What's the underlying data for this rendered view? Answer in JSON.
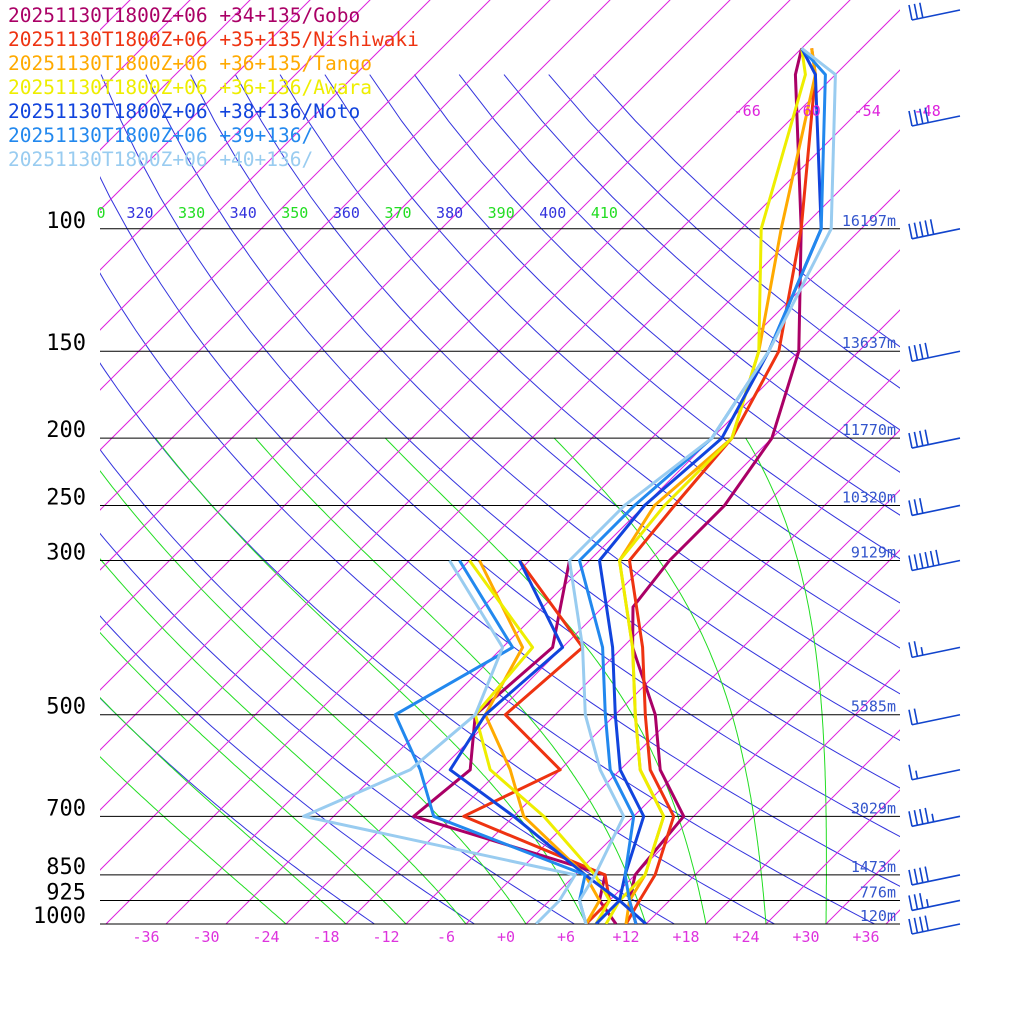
{
  "chart_data": {
    "type": "line",
    "subtype": "skew-T log-p sounding",
    "title": "",
    "xlabel": "",
    "ylabel": "",
    "x_unit": "°C",
    "y_scale": "log-pressure (hPa)",
    "xlim": [
      -40,
      40
    ],
    "ylim": [
      1000,
      100
    ],
    "x_ticks": [
      "-36",
      "-30",
      "-24",
      "-18",
      "-12",
      "-6",
      "+0",
      "+6",
      "+12",
      "+18",
      "+24",
      "+30",
      "+36"
    ],
    "pressure_levels": [
      {
        "p": 100,
        "label": "100",
        "height": "16197m"
      },
      {
        "p": 150,
        "label": "150",
        "height": "13637m"
      },
      {
        "p": 200,
        "label": "200",
        "height": "11770m"
      },
      {
        "p": 250,
        "label": "250",
        "height": "10320m"
      },
      {
        "p": 300,
        "label": "300",
        "height": "9129m"
      },
      {
        "p": 500,
        "label": "500",
        "height": "5585m"
      },
      {
        "p": 700,
        "label": "700",
        "height": "3029m"
      },
      {
        "p": 850,
        "label": "850",
        "height": "1473m"
      },
      {
        "p": 925,
        "label": "925",
        "height": "776m"
      },
      {
        "p": 1000,
        "label": "1000",
        "height": "120m"
      }
    ],
    "isotherm_labels": [
      "-66",
      "-60",
      "-54",
      "-48"
    ],
    "theta_labels": [
      "0",
      "320",
      "330",
      "340",
      "350",
      "360",
      "370",
      "380",
      "390",
      "400",
      "410"
    ],
    "grid": true,
    "legend_position": "top-left",
    "series": [
      {
        "name": "20251130T1800Z+06 +34+135/Gobo",
        "color": "#aa0066",
        "temperature": [
          [
            1000,
            13
          ],
          [
            925,
            10
          ],
          [
            850,
            8
          ],
          [
            700,
            7
          ],
          [
            600,
            0
          ],
          [
            500,
            -6
          ],
          [
            400,
            -15
          ],
          [
            350,
            -19
          ],
          [
            300,
            -20
          ],
          [
            250,
            -20
          ],
          [
            200,
            -22
          ],
          [
            150,
            -28
          ],
          [
            100,
            -40
          ],
          [
            60,
            -56
          ],
          [
            55,
            -58
          ]
        ],
        "dewpoint": [
          [
            1000,
            11
          ],
          [
            925,
            7
          ],
          [
            850,
            5
          ],
          [
            700,
            -20
          ],
          [
            600,
            -19
          ],
          [
            500,
            -24
          ],
          [
            400,
            -23
          ],
          [
            300,
            -30
          ]
        ]
      },
      {
        "name": "20251130T1800Z+06 +35+135/Nishiwaki",
        "color": "#ee3311",
        "temperature": [
          [
            1000,
            12
          ],
          [
            925,
            11
          ],
          [
            850,
            10
          ],
          [
            700,
            6
          ],
          [
            600,
            -1
          ],
          [
            500,
            -7
          ],
          [
            400,
            -14
          ],
          [
            300,
            -24
          ],
          [
            250,
            -25
          ],
          [
            200,
            -26
          ],
          [
            150,
            -30
          ],
          [
            100,
            -40
          ],
          [
            60,
            -54
          ],
          [
            55,
            -57
          ]
        ],
        "dewpoint": [
          [
            1000,
            8
          ],
          [
            925,
            8
          ],
          [
            850,
            5
          ],
          [
            700,
            -15
          ],
          [
            600,
            -10
          ],
          [
            500,
            -21
          ],
          [
            400,
            -20
          ],
          [
            300,
            -35
          ]
        ]
      },
      {
        "name": "20251130T1800Z+06 +36+135/Tango",
        "color": "#ffaa00",
        "temperature": [
          [
            1000,
            12
          ],
          [
            925,
            10
          ],
          [
            850,
            9
          ],
          [
            700,
            5
          ],
          [
            600,
            -2
          ],
          [
            500,
            -8
          ],
          [
            400,
            -15
          ],
          [
            300,
            -25
          ],
          [
            250,
            -27
          ],
          [
            200,
            -26
          ],
          [
            150,
            -32
          ],
          [
            100,
            -42
          ],
          [
            60,
            -54
          ],
          [
            55,
            -57
          ]
        ],
        "dewpoint": [
          [
            1000,
            8
          ],
          [
            925,
            7
          ],
          [
            850,
            3
          ],
          [
            700,
            -9
          ],
          [
            600,
            -15
          ],
          [
            500,
            -23
          ],
          [
            400,
            -26
          ],
          [
            300,
            -39
          ]
        ]
      },
      {
        "name": "20251130T1800Z+06 +36+136/Awara",
        "color": "#eeee00",
        "temperature": [
          [
            1000,
            10
          ],
          [
            925,
            9
          ],
          [
            850,
            9
          ],
          [
            700,
            5
          ],
          [
            600,
            -2
          ],
          [
            500,
            -8
          ],
          [
            400,
            -15
          ],
          [
            300,
            -25
          ],
          [
            250,
            -26
          ],
          [
            200,
            -26
          ],
          [
            150,
            -32
          ],
          [
            100,
            -44
          ],
          [
            60,
            -55
          ],
          [
            55,
            -58
          ]
        ],
        "dewpoint": [
          [
            1000,
            9
          ],
          [
            925,
            8
          ],
          [
            850,
            4
          ],
          [
            700,
            -7
          ],
          [
            600,
            -17
          ],
          [
            500,
            -24
          ],
          [
            400,
            -25
          ],
          [
            300,
            -40
          ]
        ]
      },
      {
        "name": "20251130T1800Z+06 +38+136/Noto",
        "color": "#1144dd",
        "temperature": [
          [
            1000,
            14
          ],
          [
            925,
            9
          ],
          [
            850,
            7
          ],
          [
            700,
            3
          ],
          [
            600,
            -4
          ],
          [
            500,
            -10
          ],
          [
            400,
            -17
          ],
          [
            300,
            -27
          ],
          [
            250,
            -28
          ],
          [
            200,
            -27
          ],
          [
            150,
            -31
          ],
          [
            100,
            -38
          ],
          [
            60,
            -54
          ],
          [
            55,
            -58
          ]
        ],
        "dewpoint": [
          [
            1000,
            9
          ],
          [
            925,
            9
          ],
          [
            850,
            3
          ],
          [
            700,
            -10
          ],
          [
            600,
            -21
          ],
          [
            500,
            -23
          ],
          [
            400,
            -22
          ],
          [
            300,
            -35
          ]
        ]
      },
      {
        "name": "20251130T1800Z+06 +39+136/",
        "color": "#2288ee",
        "temperature": [
          [
            1000,
            13
          ],
          [
            925,
            10
          ],
          [
            850,
            7
          ],
          [
            700,
            2
          ],
          [
            600,
            -5
          ],
          [
            500,
            -11
          ],
          [
            400,
            -18
          ],
          [
            300,
            -29
          ],
          [
            250,
            -29
          ],
          [
            200,
            -28
          ],
          [
            150,
            -31
          ],
          [
            100,
            -38
          ],
          [
            60,
            -53
          ],
          [
            55,
            -58
          ]
        ],
        "dewpoint": [
          [
            1000,
            8
          ],
          [
            925,
            5
          ],
          [
            850,
            3
          ],
          [
            700,
            -18
          ],
          [
            600,
            -24
          ],
          [
            500,
            -32
          ],
          [
            400,
            -27
          ],
          [
            300,
            -41
          ]
        ]
      },
      {
        "name": "20251130T1800Z+06 +40+136/",
        "color": "#99ccf0",
        "temperature": [
          [
            1000,
            8
          ],
          [
            925,
            5
          ],
          [
            850,
            4
          ],
          [
            700,
            1
          ],
          [
            600,
            -6
          ],
          [
            500,
            -13
          ],
          [
            400,
            -20
          ],
          [
            300,
            -30
          ],
          [
            250,
            -30
          ],
          [
            200,
            -28
          ],
          [
            150,
            -31
          ],
          [
            100,
            -37
          ],
          [
            60,
            -52
          ],
          [
            55,
            -58
          ]
        ],
        "dewpoint": [
          [
            1000,
            3
          ],
          [
            925,
            3
          ],
          [
            850,
            2
          ],
          [
            700,
            -31
          ],
          [
            600,
            -25
          ],
          [
            500,
            -24
          ],
          [
            400,
            -28
          ],
          [
            300,
            -42
          ]
        ]
      }
    ],
    "wind_barbs": [
      {
        "p": 1000,
        "knots": 40
      },
      {
        "p": 925,
        "knots": 35
      },
      {
        "p": 850,
        "knots": 40
      },
      {
        "p": 700,
        "knots": 45
      },
      {
        "p": 600,
        "knots": 15
      },
      {
        "p": 500,
        "knots": 20
      },
      {
        "p": 400,
        "knots": 25
      },
      {
        "p": 300,
        "knots": 60
      },
      {
        "p": 250,
        "knots": 30
      },
      {
        "p": 200,
        "knots": 40
      },
      {
        "p": 150,
        "knots": 40
      },
      {
        "p": 100,
        "knots": 50
      },
      {
        "p": 70,
        "knots": 40
      },
      {
        "p": 55,
        "knots": 30
      }
    ],
    "colors": {
      "isotherm": "#dd22dd",
      "dry_adiabat": "#3333dd",
      "moist_adiabat": "#22dd22",
      "isobar": "#000000",
      "height_label": "#3355cc",
      "x_tick": "#dd33dd",
      "barb": "#1144cc"
    }
  }
}
